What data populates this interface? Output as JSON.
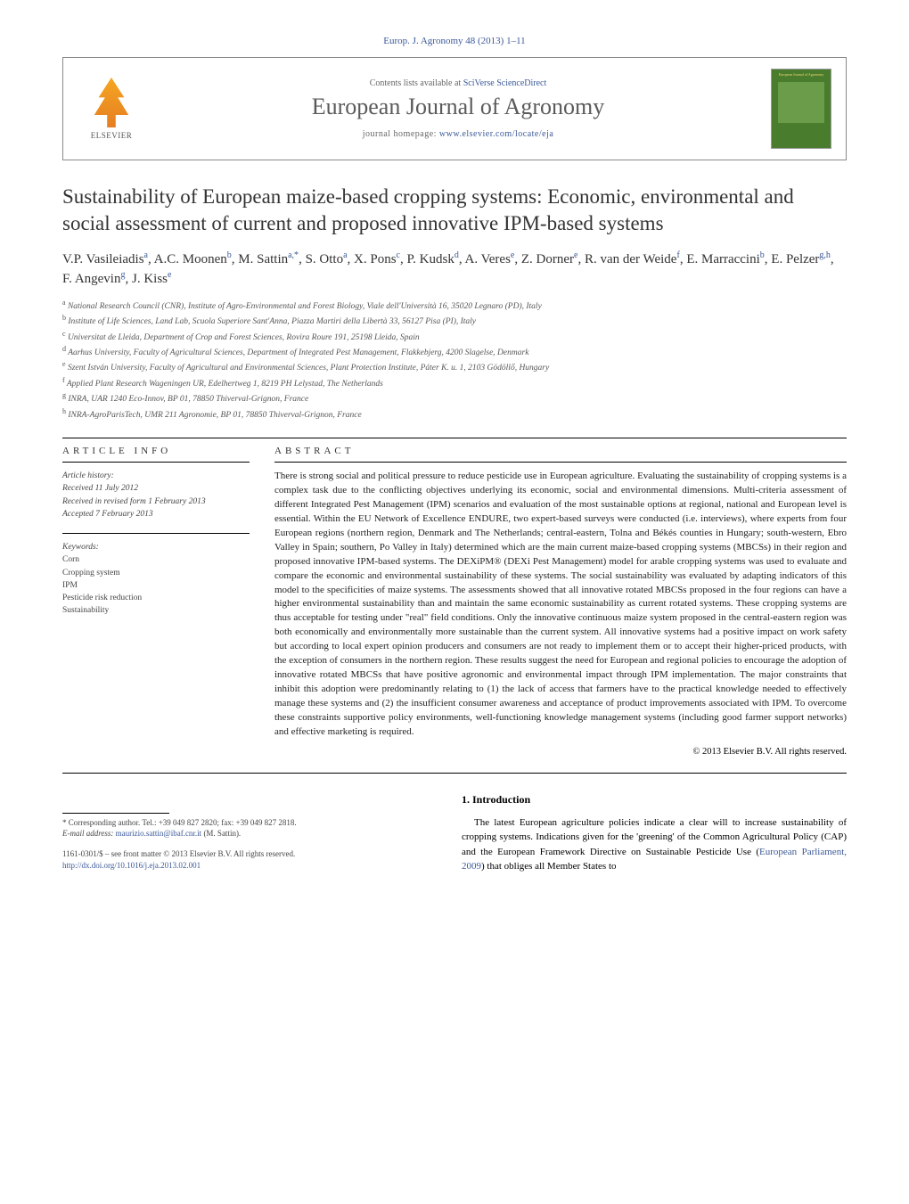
{
  "journal_ref": "Europ. J. Agronomy 48 (2013) 1–11",
  "header": {
    "contents_text": "Contents lists available at ",
    "contents_link": "SciVerse ScienceDirect",
    "journal_title": "European Journal of Agronomy",
    "homepage_text": "journal homepage: ",
    "homepage_link": "www.elsevier.com/locate/eja",
    "publisher_logo_text": "ELSEVIER",
    "cover_title": "European Journal of Agronomy"
  },
  "article": {
    "title": "Sustainability of European maize-based cropping systems: Economic, environmental and social assessment of current and proposed innovative IPM-based systems",
    "authors_html": "V.P. Vasileiadis<sup>a</sup>, A.C. Moonen<sup>b</sup>, M. Sattin<sup>a,*</sup>, S. Otto<sup>a</sup>, X. Pons<sup>c</sup>, P. Kudsk<sup>d</sup>, A. Veres<sup>e</sup>, Z. Dorner<sup>e</sup>, R. van der Weide<sup>f</sup>, E. Marraccini<sup>b</sup>, E. Pelzer<sup>g,h</sup>, F. Angevin<sup>g</sup>, J. Kiss<sup>e</sup>"
  },
  "affiliations": [
    "a National Research Council (CNR), Institute of Agro-Environmental and Forest Biology, Viale dell'Università 16, 35020 Legnaro (PD), Italy",
    "b Institute of Life Sciences, Land Lab, Scuola Superiore Sant'Anna, Piazza Martiri della Libertà 33, 56127 Pisa (PI), Italy",
    "c Universitat de Lleida, Department of Crop and Forest Sciences, Rovira Roure 191, 25198 Lleida, Spain",
    "d Aarhus University, Faculty of Agricultural Sciences, Department of Integrated Pest Management, Flakkebjerg, 4200 Slagelse, Denmark",
    "e Szent István University, Faculty of Agricultural and Environmental Sciences, Plant Protection Institute, Páter K. u. 1, 2103 Gödöllő, Hungary",
    "f Applied Plant Research Wageningen UR, Edelhertweg 1, 8219 PH Lelystad, The Netherlands",
    "g INRA, UAR 1240 Eco-Innov, BP 01, 78850 Thiverval-Grignon, France",
    "h INRA-AgroParisTech, UMR 211 Agronomie, BP 01, 78850 Thiverval-Grignon, France"
  ],
  "article_info": {
    "section_label": "ARTICLE INFO",
    "history_label": "Article history:",
    "received": "Received 11 July 2012",
    "revised": "Received in revised form 1 February 2013",
    "accepted": "Accepted 7 February 2013",
    "keywords_label": "Keywords:",
    "keywords": [
      "Corn",
      "Cropping system",
      "IPM",
      "Pesticide risk reduction",
      "Sustainability"
    ]
  },
  "abstract": {
    "label": "ABSTRACT",
    "text": "There is strong social and political pressure to reduce pesticide use in European agriculture. Evaluating the sustainability of cropping systems is a complex task due to the conflicting objectives underlying its economic, social and environmental dimensions. Multi-criteria assessment of different Integrated Pest Management (IPM) scenarios and evaluation of the most sustainable options at regional, national and European level is essential. Within the EU Network of Excellence ENDURE, two expert-based surveys were conducted (i.e. interviews), where experts from four European regions (northern region, Denmark and The Netherlands; central-eastern, Tolna and Békés counties in Hungary; south-western, Ebro Valley in Spain; southern, Po Valley in Italy) determined which are the main current maize-based cropping systems (MBCSs) in their region and proposed innovative IPM-based systems. The DEXiPM® (DEXi Pest Management) model for arable cropping systems was used to evaluate and compare the economic and environmental sustainability of these systems. The social sustainability was evaluated by adapting indicators of this model to the specificities of maize systems. The assessments showed that all innovative rotated MBCSs proposed in the four regions can have a higher environmental sustainability than and maintain the same economic sustainability as current rotated systems. These cropping systems are thus acceptable for testing under \"real\" field conditions. Only the innovative continuous maize system proposed in the central-eastern region was both economically and environmentally more sustainable than the current system. All innovative systems had a positive impact on work safety but according to local expert opinion producers and consumers are not ready to implement them or to accept their higher-priced products, with the exception of consumers in the northern region. These results suggest the need for European and regional policies to encourage the adoption of innovative rotated MBCSs that have positive agronomic and environmental impact through IPM implementation. The major constraints that inhibit this adoption were predominantly relating to (1) the lack of access that farmers have to the practical knowledge needed to effectively manage these systems and (2) the insufficient consumer awareness and acceptance of product improvements associated with IPM. To overcome these constraints supportive policy environments, well-functioning knowledge management systems (including good farmer support networks) and effective marketing is required.",
    "copyright": "© 2013 Elsevier B.V. All rights reserved."
  },
  "intro": {
    "heading": "1. Introduction",
    "text_part1": "The latest European agriculture policies indicate a clear will to increase sustainability of cropping systems. Indications given for the 'greening' of the Common Agricultural Policy (CAP) and the European Framework Directive on Sustainable Pesticide Use (",
    "link": "European Parliament, 2009",
    "text_part2": ") that obliges all Member States to"
  },
  "footer": {
    "corresponding": "* Corresponding author. Tel.: +39 049 827 2820; fax: +39 049 827 2818.",
    "email_label": "E-mail address: ",
    "email": "maurizio.sattin@ibaf.cnr.it",
    "email_name": " (M. Sattin).",
    "issn_line": "1161-0301/$ – see front matter © 2013 Elsevier B.V. All rights reserved.",
    "doi": "http://dx.doi.org/10.1016/j.eja.2013.02.001"
  },
  "colors": {
    "link_color": "#3b5998",
    "text_color": "#000000",
    "muted_text": "#555555",
    "cover_bg": "#4a7c2e"
  },
  "typography": {
    "body_font": "Georgia, 'Times New Roman', serif",
    "title_fontsize": 23,
    "journal_title_fontsize": 26,
    "abstract_fontsize": 11,
    "affiliation_fontsize": 9.5
  }
}
